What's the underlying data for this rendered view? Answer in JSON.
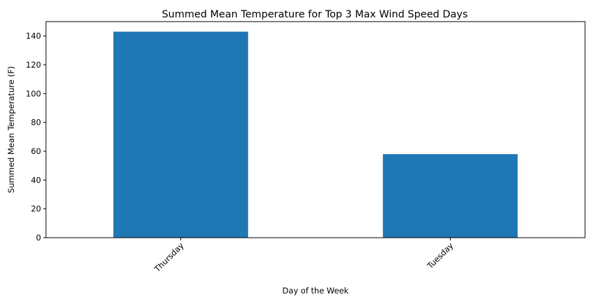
{
  "chart_data": {
    "type": "bar",
    "title": "Summed Mean Temperature for Top 3 Max Wind Speed Days",
    "xlabel": "Day of the Week",
    "ylabel": "Summed Mean Temperature (F)",
    "categories": [
      "Thursday",
      "Tuesday"
    ],
    "values": [
      143,
      58
    ],
    "ylim": [
      0,
      150
    ],
    "yticks": [
      0,
      20,
      40,
      60,
      80,
      100,
      120,
      140
    ],
    "bar_color": "#1f77b4",
    "grid": false,
    "legend": "none",
    "xtick_rotation_deg": 45
  }
}
